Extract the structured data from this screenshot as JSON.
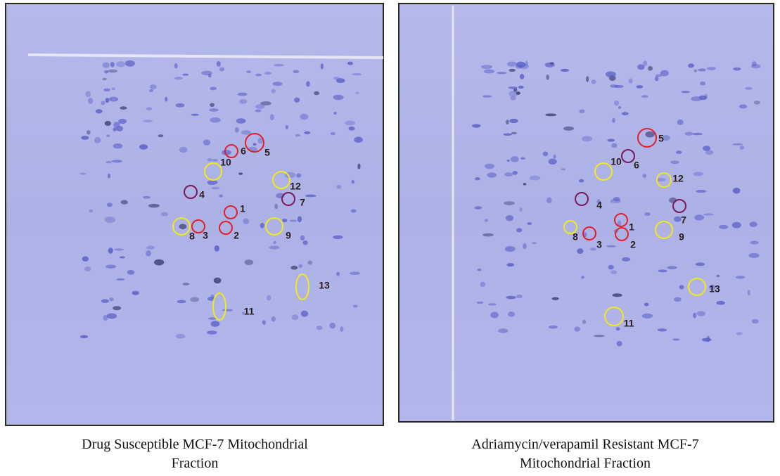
{
  "panels": [
    {
      "caption": [
        "Drug Susceptible MCF-7 Mitochondrial",
        "Fraction"
      ],
      "spots": [
        {
          "label": "1",
          "color": "#e0202a"
        },
        {
          "label": "2",
          "color": "#e0202a"
        },
        {
          "label": "3",
          "color": "#e0202a"
        },
        {
          "label": "4",
          "color": "#7a1a5a"
        },
        {
          "label": "5",
          "color": "#e0202a"
        },
        {
          "label": "6",
          "color": "#e0202a"
        },
        {
          "label": "7",
          "color": "#7a1a5a"
        },
        {
          "label": "8",
          "color": "#f2e81e"
        },
        {
          "label": "9",
          "color": "#f2e81e"
        },
        {
          "label": "10",
          "color": "#f2e81e"
        },
        {
          "label": "11",
          "color": "#f2e81e"
        },
        {
          "label": "12",
          "color": "#f2e81e"
        },
        {
          "label": "13",
          "color": "#f2e81e"
        }
      ]
    },
    {
      "caption": [
        "Adriamycin/verapamil Resistant MCF-7",
        "Mitochondrial Fraction"
      ],
      "spots": [
        {
          "label": "1",
          "color": "#e0202a"
        },
        {
          "label": "2",
          "color": "#e0202a"
        },
        {
          "label": "3",
          "color": "#e0202a"
        },
        {
          "label": "4",
          "color": "#7a1a5a"
        },
        {
          "label": "5",
          "color": "#e0202a"
        },
        {
          "label": "6",
          "color": "#7a1a5a"
        },
        {
          "label": "7",
          "color": "#7a1a5a"
        },
        {
          "label": "8",
          "color": "#f2e81e"
        },
        {
          "label": "9",
          "color": "#f2e81e"
        },
        {
          "label": "10",
          "color": "#f2e81e"
        },
        {
          "label": "11",
          "color": "#f2e81e"
        },
        {
          "label": "12",
          "color": "#f2e81e"
        },
        {
          "label": "13",
          "color": "#f2e81e"
        }
      ]
    }
  ]
}
